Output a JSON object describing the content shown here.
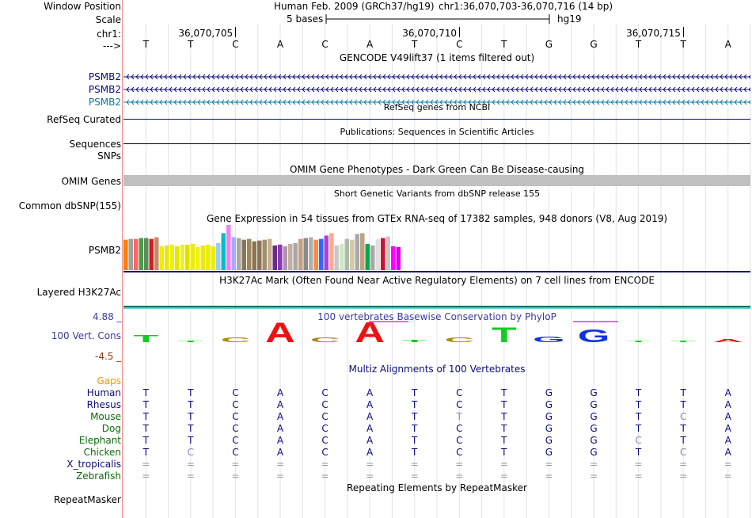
{
  "header": {
    "window_position_label": "Window Position",
    "assembly": "Human Feb. 2009 (GRCh37/hg19)",
    "position": "chr1:36,070,703-36,070,716 (14 bp)",
    "scale_label": "Scale",
    "scale_value": "5 bases",
    "scale_db": "hg19",
    "chrom_label": "chr1:",
    "strand_label": "--->",
    "ruler_ticks": [
      "36,070,705",
      "36,070,710",
      "36,070,715"
    ],
    "sequence": [
      "T",
      "T",
      "C",
      "A",
      "C",
      "A",
      "T",
      "C",
      "T",
      "G",
      "G",
      "T",
      "T",
      "A"
    ]
  },
  "tracks": {
    "gencode": {
      "title": "GENCODE V49lift37 (1 items filtered out)",
      "items": [
        {
          "name": "PSMB2",
          "color": "#0c0c78"
        },
        {
          "name": "PSMB2",
          "color": "#0c0c78"
        },
        {
          "name": "PSMB2",
          "color": "#0c78a0"
        }
      ]
    },
    "refseq": {
      "title": "RefSeq genes from NCBI",
      "label": "RefSeq Curated",
      "color": "#0c0c78"
    },
    "publications": {
      "title": "Publications: Sequences in Scientific Articles",
      "label": "Sequences"
    },
    "snps": {
      "label": "SNPs"
    },
    "omim": {
      "title": "OMIM Gene Phenotypes - Dark Green Can Be Disease-causing",
      "label": "OMIM Genes",
      "color": "#0c6a0c"
    },
    "dbsnp": {
      "title": "Short Genetic Variants from dbSNP release 155",
      "label": "Common dbSNP(155)"
    },
    "gtex": {
      "title": "Gene Expression in 54 tissues from GTEx RNA-seq of 17382 samples, 948 donors (V8, Aug 2019)",
      "label": "PSMB2"
    },
    "h3k27ac": {
      "title": "H3K27Ac Mark (Often Found Near Active Regulatory Elements) on 7 cell lines from ENCODE",
      "label": "Layered H3K27Ac"
    },
    "phylop": {
      "title": "100 vertebrates Basewise Conservation by PhyloP",
      "label": "100 Vert. Cons",
      "ymax": "4.88 _",
      "ymin": "-4.5 _"
    },
    "multiz": {
      "title": "Multiz Alignments of 100 Vertebrates",
      "gaps_label": "Gaps",
      "species": [
        {
          "name": "Human",
          "color": "#0c0c78",
          "seq": [
            "T",
            "T",
            "C",
            "A",
            "C",
            "A",
            "T",
            "C",
            "T",
            "G",
            "G",
            "T",
            "T",
            "A"
          ]
        },
        {
          "name": "Rhesus",
          "color": "#0c0c78",
          "seq": [
            "T",
            "T",
            "C",
            "A",
            "C",
            "A",
            "T",
            "C",
            "T",
            "G",
            "G",
            "T",
            "T",
            "A"
          ]
        },
        {
          "name": "Mouse",
          "color": "#0c6a0c",
          "seq": [
            "T",
            "T",
            "C",
            "A",
            "C",
            "A",
            "T",
            "T",
            "T",
            "G",
            "G",
            "T",
            "C",
            "A"
          ]
        },
        {
          "name": "Dog",
          "color": "#0c6a0c",
          "seq": [
            "T",
            "T",
            "C",
            "A",
            "C",
            "A",
            "T",
            "C",
            "T",
            "G",
            "G",
            "T",
            "T",
            "A"
          ]
        },
        {
          "name": "Elephant",
          "color": "#0c6a0c",
          "seq": [
            "T",
            "T",
            "C",
            "A",
            "C",
            "A",
            "T",
            "C",
            "T",
            "G",
            "G",
            "C",
            "T",
            "A"
          ]
        },
        {
          "name": "Chicken",
          "color": "#0c6a0c",
          "seq": [
            "T",
            "C",
            "C",
            "A",
            "C",
            "A",
            "T",
            "C",
            "T",
            "G",
            "G",
            "T",
            "C",
            "A"
          ]
        },
        {
          "name": "X_tropicalis",
          "color": "#0c0c78",
          "seq": [
            "=",
            "=",
            "=",
            "=",
            "=",
            "=",
            "=",
            "=",
            "=",
            "=",
            "=",
            "=",
            "=",
            "="
          ]
        },
        {
          "name": "Zebrafish",
          "color": "#0c6a0c",
          "seq": [
            "=",
            "=",
            "=",
            "=",
            "=",
            "=",
            "=",
            "=",
            "=",
            "=",
            "=",
            "=",
            "=",
            "="
          ]
        }
      ]
    },
    "repeatmasker": {
      "title": "Repeating Elements by RepeatMasker",
      "label": "RepeatMasker"
    }
  },
  "chart_data": [
    {
      "type": "bar",
      "name": "GTEx PSMB2 expression",
      "values": [
        37,
        38,
        38,
        39,
        39,
        38,
        40,
        29,
        30,
        31,
        29,
        31,
        31,
        32,
        28,
        30,
        31,
        29,
        33,
        45,
        55,
        40,
        39,
        37,
        38,
        35,
        36,
        37,
        38,
        30,
        31,
        29,
        32,
        33,
        38,
        39,
        40,
        37,
        38,
        42,
        45,
        30,
        32,
        38,
        37,
        44,
        45,
        32,
        30,
        38,
        39,
        41,
        29,
        28
      ],
      "colors": [
        "#ff8000",
        "#a0a0a0",
        "#ff6666",
        "#4a9a4a",
        "#5e8a5e",
        "#cc2222",
        "#c48a6a",
        "#eeee00",
        "#e8e800",
        "#f0f000",
        "#e5e500",
        "#eeee33",
        "#e0e000",
        "#eded00",
        "#f2f200",
        "#e8e822",
        "#eeee00",
        "#eeee00",
        "#99ccff",
        "#00c0c0",
        "#ee82ee",
        "#aaaaff",
        "#a8a8a8",
        "#8b7355",
        "#a0855a",
        "#8b7355",
        "#8b7355",
        "#a09070",
        "#c8b090",
        "#6a2a8a",
        "#8a3aaa",
        "#b090b0",
        "#c0b0a0",
        "#a8a8a8",
        "#c4a080",
        "#8a8a8a",
        "#b0b0b0",
        "#ff8844",
        "#3366ff",
        "#aa44cc",
        "#ffaa88",
        "#c8c8c8",
        "#cfe8c0",
        "#aabbaa",
        "#d8c8a8",
        "#aaaaaa",
        "#c0a080",
        "#00aa44",
        "#a8a8a8",
        "#e0e0e0",
        "#cc1133",
        "#c8c8c8",
        "#ff00ff",
        "#dd00ee"
      ]
    },
    {
      "type": "bar",
      "name": "100 vertebrates Basewise Conservation by PhyloP",
      "categories": [
        "T",
        "T",
        "C",
        "A",
        "C",
        "A",
        "T",
        "C",
        "T",
        "G",
        "G",
        "T",
        "T",
        "A"
      ],
      "values": [
        1.2,
        0.3,
        0.8,
        3.4,
        0.8,
        3.5,
        0.4,
        0.8,
        2.6,
        1.0,
        2.2,
        0.2,
        0.3,
        0.5
      ],
      "ylim": [
        -4.5,
        4.88
      ]
    }
  ]
}
